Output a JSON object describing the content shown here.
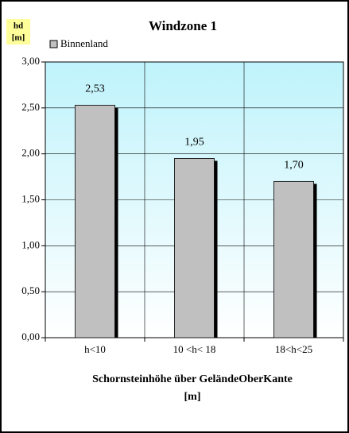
{
  "chart_data": {
    "type": "bar",
    "title": "Windzone 1",
    "y_label": [
      "hd",
      "[m]"
    ],
    "x_label": [
      "Schornsteinhöhe über GeländeOberKante",
      "[m]"
    ],
    "categories": [
      "h<10",
      "10 <h< 18",
      "18<h<25"
    ],
    "series": [
      {
        "name": "Binnenland",
        "color": "#c0c0c0",
        "values": [
          2.53,
          1.95,
          1.7
        ],
        "value_labels": [
          "2,53",
          "1,95",
          "1,70"
        ]
      }
    ],
    "ylim": [
      0,
      3
    ],
    "yticks": [
      {
        "value": 0,
        "label": "0,00"
      },
      {
        "value": 0.5,
        "label": "0,50"
      },
      {
        "value": 1,
        "label": "1,00"
      },
      {
        "value": 1.5,
        "label": "1,50"
      },
      {
        "value": 2,
        "label": "2,00"
      },
      {
        "value": 2.5,
        "label": "2,50"
      },
      {
        "value": 3,
        "label": "3,00"
      }
    ],
    "grid": true
  }
}
